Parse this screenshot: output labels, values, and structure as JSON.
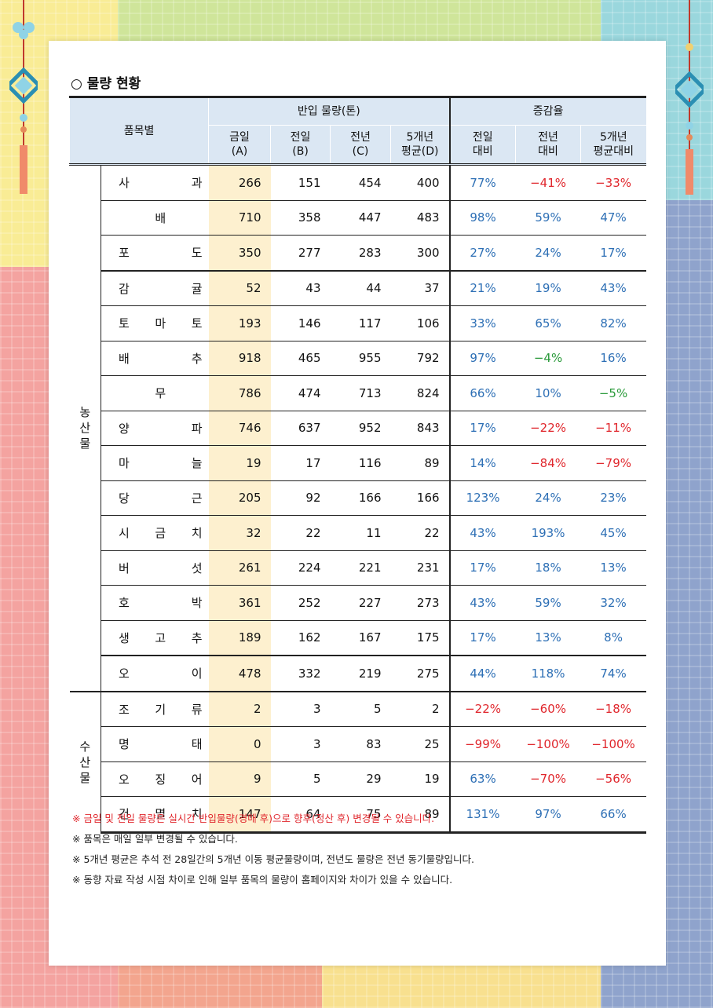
{
  "section_title": "○ 물량 현황",
  "header": {
    "item_col": "품목별",
    "volume_group": "반입 물량(톤)",
    "change_group": "증감율",
    "cols": [
      {
        "l1": "금일",
        "l2": "(A)"
      },
      {
        "l1": "전일",
        "l2": "(B)"
      },
      {
        "l1": "전년",
        "l2": "(C)"
      },
      {
        "l1": "5개년",
        "l2": "평균(D)"
      },
      {
        "l1": "전일",
        "l2": "대비"
      },
      {
        "l1": "전년",
        "l2": "대비"
      },
      {
        "l1": "5개년",
        "l2": "평균대비"
      }
    ]
  },
  "categories": {
    "agri": [
      "농",
      "산",
      "물"
    ],
    "sea": [
      "수",
      "산",
      "물"
    ]
  },
  "rows": [
    {
      "chars": [
        "사",
        "과"
      ],
      "a": "266",
      "b": "151",
      "c": "454",
      "d": "400",
      "p1": "77%",
      "p2": "−41%",
      "p3": "−33%",
      "s1": "pos",
      "s2": "neg",
      "s3": "neg"
    },
    {
      "chars": [
        "배"
      ],
      "a": "710",
      "b": "358",
      "c": "447",
      "d": "483",
      "p1": "98%",
      "p2": "59%",
      "p3": "47%",
      "s1": "pos",
      "s2": "pos",
      "s3": "pos"
    },
    {
      "chars": [
        "포",
        "도"
      ],
      "a": "350",
      "b": "277",
      "c": "283",
      "d": "300",
      "p1": "27%",
      "p2": "24%",
      "p3": "17%",
      "s1": "pos",
      "s2": "pos",
      "s3": "pos"
    },
    {
      "chars": [
        "감",
        "귤"
      ],
      "a": "52",
      "b": "43",
      "c": "44",
      "d": "37",
      "p1": "21%",
      "p2": "19%",
      "p3": "43%",
      "s1": "pos",
      "s2": "pos",
      "s3": "pos"
    },
    {
      "chars": [
        "토",
        "마",
        "토"
      ],
      "a": "193",
      "b": "146",
      "c": "117",
      "d": "106",
      "p1": "33%",
      "p2": "65%",
      "p3": "82%",
      "s1": "pos",
      "s2": "pos",
      "s3": "pos"
    },
    {
      "chars": [
        "배",
        "추"
      ],
      "a": "918",
      "b": "465",
      "c": "955",
      "d": "792",
      "p1": "97%",
      "p2": "−4%",
      "p3": "16%",
      "s1": "pos",
      "s2": "gneg",
      "s3": "pos"
    },
    {
      "chars": [
        "무"
      ],
      "a": "786",
      "b": "474",
      "c": "713",
      "d": "824",
      "p1": "66%",
      "p2": "10%",
      "p3": "−5%",
      "s1": "pos",
      "s2": "pos",
      "s3": "gneg"
    },
    {
      "chars": [
        "양",
        "파"
      ],
      "a": "746",
      "b": "637",
      "c": "952",
      "d": "843",
      "p1": "17%",
      "p2": "−22%",
      "p3": "−11%",
      "s1": "pos",
      "s2": "neg",
      "s3": "neg"
    },
    {
      "chars": [
        "마",
        "늘"
      ],
      "a": "19",
      "b": "17",
      "c": "116",
      "d": "89",
      "p1": "14%",
      "p2": "−84%",
      "p3": "−79%",
      "s1": "pos",
      "s2": "neg",
      "s3": "neg"
    },
    {
      "chars": [
        "당",
        "근"
      ],
      "a": "205",
      "b": "92",
      "c": "166",
      "d": "166",
      "p1": "123%",
      "p2": "24%",
      "p3": "23%",
      "s1": "pos",
      "s2": "pos",
      "s3": "pos"
    },
    {
      "chars": [
        "시",
        "금",
        "치"
      ],
      "a": "32",
      "b": "22",
      "c": "11",
      "d": "22",
      "p1": "43%",
      "p2": "193%",
      "p3": "45%",
      "s1": "pos",
      "s2": "pos",
      "s3": "pos"
    },
    {
      "chars": [
        "버",
        "섯"
      ],
      "a": "261",
      "b": "224",
      "c": "221",
      "d": "231",
      "p1": "17%",
      "p2": "18%",
      "p3": "13%",
      "s1": "pos",
      "s2": "pos",
      "s3": "pos"
    },
    {
      "chars": [
        "호",
        "박"
      ],
      "a": "361",
      "b": "252",
      "c": "227",
      "d": "273",
      "p1": "43%",
      "p2": "59%",
      "p3": "32%",
      "s1": "pos",
      "s2": "pos",
      "s3": "pos"
    },
    {
      "chars": [
        "생",
        "고",
        "추"
      ],
      "a": "189",
      "b": "162",
      "c": "167",
      "d": "175",
      "p1": "17%",
      "p2": "13%",
      "p3": "8%",
      "s1": "pos",
      "s2": "pos",
      "s3": "pos"
    },
    {
      "chars": [
        "오",
        "이"
      ],
      "a": "478",
      "b": "332",
      "c": "219",
      "d": "275",
      "p1": "44%",
      "p2": "118%",
      "p3": "74%",
      "s1": "pos",
      "s2": "pos",
      "s3": "pos"
    },
    {
      "chars": [
        "조",
        "기",
        "류"
      ],
      "a": "2",
      "b": "3",
      "c": "5",
      "d": "2",
      "p1": "−22%",
      "p2": "−60%",
      "p3": "−18%",
      "s1": "neg",
      "s2": "neg",
      "s3": "neg"
    },
    {
      "chars": [
        "명",
        "태"
      ],
      "a": "0",
      "b": "3",
      "c": "83",
      "d": "25",
      "p1": "−99%",
      "p2": "−100%",
      "p3": "−100%",
      "s1": "neg",
      "s2": "neg",
      "s3": "neg"
    },
    {
      "chars": [
        "오",
        "징",
        "어"
      ],
      "a": "9",
      "b": "5",
      "c": "29",
      "d": "19",
      "p1": "63%",
      "p2": "−70%",
      "p3": "−56%",
      "s1": "pos",
      "s2": "neg",
      "s3": "neg"
    },
    {
      "chars": [
        "건",
        "멸",
        "치"
      ],
      "a": "147",
      "b": "64",
      "c": "75",
      "d": "89",
      "p1": "131%",
      "p2": "97%",
      "p3": "66%",
      "s1": "pos",
      "s2": "pos",
      "s3": "pos"
    }
  ],
  "notes": [
    "※ 금일 및 전일 물량은 실시간 반입물량(경매 후)으로 향후(정산 후) 변경될 수 있습니다.",
    "※ 품목은 매일 일부 변경될 수 있습니다.",
    "※ 5개년 평균은 추석 전 28일간의 5개년 이동 평균물량이며, 전년도 물량은 전년 동기물량입니다.",
    "※ 동향 자료 작성 시점 차이로 인해 일부 품목의 물량이 홈페이지와 차이가 있을 수 있습니다."
  ]
}
